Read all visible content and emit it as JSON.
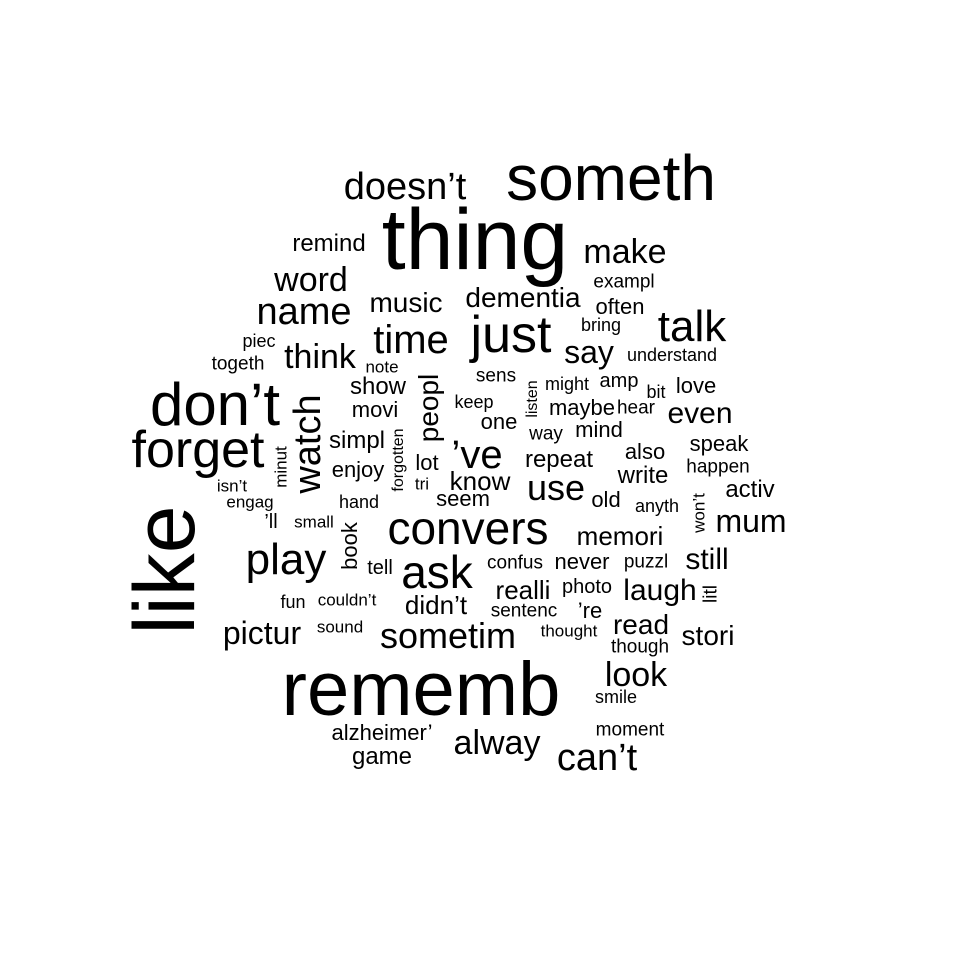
{
  "text_color": "#000000",
  "background": "#ffffff",
  "words": [
    "someth",
    "thing",
    "doesn’t",
    "remind",
    "make",
    "word",
    "exampl",
    "name",
    "music",
    "dementia",
    "often",
    "talk",
    "bring",
    "time",
    "just",
    "piec",
    "think",
    "say",
    "togeth",
    "note",
    "understand",
    "sens",
    "amp",
    "might",
    "don’t",
    "show",
    "love",
    "bit",
    "peopl",
    "listen",
    "keep",
    "movi",
    "watch",
    "hear",
    "even",
    "maybe",
    "one",
    "forget",
    "simpl",
    "forgotten",
    "mind",
    "way",
    "’ve",
    "speak",
    "also",
    "minut",
    "lot",
    "enjoy",
    "repeat",
    "happen",
    "write",
    "isn’t",
    "tri",
    "know",
    "activ",
    "use",
    "like",
    "anyth",
    "hand",
    "seem",
    "old",
    "engag",
    "won’t",
    "convers",
    "mum",
    "’ll",
    "small",
    "book",
    "memori",
    "play",
    "still",
    "tell",
    "ask",
    "confus",
    "never",
    "puzzl",
    "realli",
    "photo",
    "laugh",
    "fun",
    "couldn’t",
    "didn’t",
    "sentenc",
    "’re",
    "litl",
    "read",
    "pictur",
    "sound",
    "sometim",
    "thought",
    "stori",
    "though",
    "look",
    "rememb",
    "smile",
    "moment",
    "alzheimer’",
    "alway",
    "game",
    "can’t"
  ]
}
